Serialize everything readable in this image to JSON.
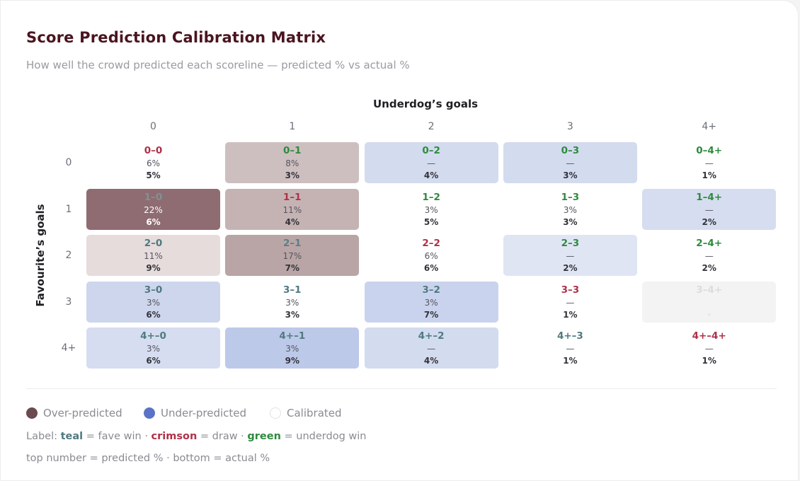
{
  "header": {
    "title": "Score Prediction Calibration Matrix",
    "subtitle": "How well the crowd predicted each scoreline — predicted % vs actual %"
  },
  "matrix": {
    "x_label": "Underdog’s goals",
    "y_label": "Favourite’s goals",
    "columns": [
      "0",
      "1",
      "2",
      "3",
      "4+"
    ],
    "rows": [
      {
        "label": "0",
        "cells": [
          {
            "label": "0–0",
            "predicted": "6%",
            "actual": "5%",
            "color": "#b03048",
            "bg": "#ffffff"
          },
          {
            "label": "0–1",
            "predicted": "8%",
            "actual": "3%",
            "color": "#2e8a3e",
            "bg": "#cdbfc0"
          },
          {
            "label": "0–2",
            "predicted": "—",
            "actual": "4%",
            "color": "#2e8a3e",
            "bg": "#d3dbef"
          },
          {
            "label": "0–3",
            "predicted": "—",
            "actual": "3%",
            "color": "#2e8a3e",
            "bg": "#d3dbef"
          },
          {
            "label": "0–4+",
            "predicted": "—",
            "actual": "1%",
            "color": "#2e8a3e",
            "bg": "#ffffff"
          }
        ]
      },
      {
        "label": "1",
        "cells": [
          {
            "label": "1–0",
            "predicted": "22%",
            "actual": "6%",
            "color": "#7f9196",
            "bg": "#8f6c71",
            "text": "#ffffff"
          },
          {
            "label": "1–1",
            "predicted": "11%",
            "actual": "4%",
            "color": "#b03048",
            "bg": "#c5b3b4"
          },
          {
            "label": "1–2",
            "predicted": "3%",
            "actual": "5%",
            "color": "#2e8a3e",
            "bg": "#ffffff"
          },
          {
            "label": "1–3",
            "predicted": "3%",
            "actual": "3%",
            "color": "#2e8a3e",
            "bg": "#ffffff"
          },
          {
            "label": "1–4+",
            "predicted": "—",
            "actual": "2%",
            "color": "#2e8a3e",
            "bg": "#d6ddf0"
          }
        ]
      },
      {
        "label": "2",
        "cells": [
          {
            "label": "2–0",
            "predicted": "11%",
            "actual": "9%",
            "color": "#4f7a80",
            "bg": "#e6dcdc"
          },
          {
            "label": "2–1",
            "predicted": "17%",
            "actual": "7%",
            "color": "#5d7f84",
            "bg": "#b9a5a6"
          },
          {
            "label": "2–2",
            "predicted": "6%",
            "actual": "6%",
            "color": "#b03048",
            "bg": "#ffffff"
          },
          {
            "label": "2–3",
            "predicted": "—",
            "actual": "2%",
            "color": "#2e8a3e",
            "bg": "#e0e5f4"
          },
          {
            "label": "2–4+",
            "predicted": "—",
            "actual": "2%",
            "color": "#2e8a3e",
            "bg": "#ffffff"
          }
        ]
      },
      {
        "label": "3",
        "cells": [
          {
            "label": "3–0",
            "predicted": "3%",
            "actual": "6%",
            "color": "#4f7a80",
            "bg": "#cdd6ed"
          },
          {
            "label": "3–1",
            "predicted": "3%",
            "actual": "3%",
            "color": "#4f7a80",
            "bg": "#ffffff"
          },
          {
            "label": "3–2",
            "predicted": "3%",
            "actual": "7%",
            "color": "#4f7a80",
            "bg": "#cad3ed"
          },
          {
            "label": "3–3",
            "predicted": "—",
            "actual": "1%",
            "color": "#b03048",
            "bg": "#ffffff"
          },
          {
            "label": "3–4+",
            "actual": "·",
            "color": "#dcdcdc",
            "bg": "#f3f3f4"
          }
        ]
      },
      {
        "label": "4+",
        "cells": [
          {
            "label": "4+–0",
            "predicted": "3%",
            "actual": "6%",
            "color": "#4f7a80",
            "bg": "#d6ddf0"
          },
          {
            "label": "4+–1",
            "predicted": "3%",
            "actual": "9%",
            "color": "#4f7a80",
            "bg": "#bdc9e9"
          },
          {
            "label": "4+–2",
            "predicted": "—",
            "actual": "4%",
            "color": "#4f7a80",
            "bg": "#d3dbef"
          },
          {
            "label": "4+–3",
            "predicted": "—",
            "actual": "1%",
            "color": "#4f7a80",
            "bg": "#ffffff"
          },
          {
            "label": "4+–4+",
            "predicted": "—",
            "actual": "1%",
            "color": "#b03048",
            "bg": "#ffffff"
          }
        ]
      }
    ]
  },
  "legend": [
    {
      "label": "Over-predicted",
      "color": "#6b4a50"
    },
    {
      "label": "Under-predicted",
      "color": "#5b73c6"
    },
    {
      "label": "Calibrated",
      "color": "#ffffff"
    }
  ],
  "notes": {
    "key_prefix": "Label:",
    "key": [
      {
        "word": "teal",
        "color": "#4f7a80",
        "meaning": "= fave win"
      },
      {
        "word": "crimson",
        "color": "#b03048",
        "meaning": "= draw"
      },
      {
        "word": "green",
        "color": "#2e8a3e",
        "meaning": "= underdog win"
      }
    ],
    "separator": "·",
    "footer": "top number = predicted % · bottom = actual %"
  }
}
